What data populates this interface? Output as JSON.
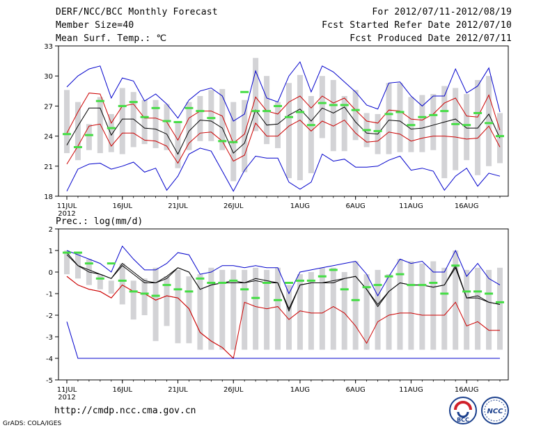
{
  "header": {
    "title": "DERF/NCC/BCC Monthly Forecast",
    "member_size": "Member Size=40",
    "variable1": "Mean Surf. Temp.: ℃",
    "forecast_period": "For 2012/07/11-2012/08/19",
    "fcst_started": "Fcst Started Refer Date 2012/07/10",
    "fcst_produced": "Fcst Produced Date 2012/07/11"
  },
  "footer": {
    "url": "http://cmdp.ncc.cma.gov.cn",
    "credit": "GrADS: COLA/IGES",
    "logo_bcc": "BCC",
    "logo_ncc": "NCC"
  },
  "chart_data": [
    {
      "type": "line",
      "title": "Mean Surf. Temp.: ℃",
      "ylim": [
        18,
        33
      ],
      "yticks": [
        18,
        21,
        24,
        27,
        30,
        33
      ],
      "xlim": [
        0,
        39
      ],
      "xticks": [
        {
          "day": 0,
          "label": "11JUL"
        },
        {
          "day": 5,
          "label": "16JUL"
        },
        {
          "day": 10,
          "label": "21JUL"
        },
        {
          "day": 15,
          "label": "26JUL"
        },
        {
          "day": 21,
          "label": "1AUG"
        },
        {
          "day": 26,
          "label": "6AUG"
        },
        {
          "day": 31,
          "label": "11AUG"
        },
        {
          "day": 36,
          "label": "16AUG"
        }
      ],
      "year_label": "2012",
      "series": [
        {
          "name": "max",
          "color": "#0000cc",
          "values": [
            28.9,
            30.0,
            30.7,
            31.0,
            27.8,
            29.8,
            29.5,
            27.5,
            28.2,
            27.2,
            25.8,
            27.6,
            28.5,
            28.8,
            28.0,
            25.5,
            26.2,
            30.5,
            27.8,
            27.4,
            30.0,
            31.4,
            28.4,
            31.0,
            30.4,
            29.4,
            28.4,
            27.1,
            26.7,
            29.3,
            29.4,
            28.0,
            27.0,
            28.0,
            28.0,
            30.7,
            28.3,
            29.0,
            30.8,
            26.4
          ]
        },
        {
          "name": "upper",
          "color": "#cc0000",
          "values": [
            24.3,
            26.4,
            28.3,
            28.2,
            25.3,
            27.0,
            27.2,
            25.8,
            25.8,
            25.4,
            23.6,
            25.8,
            26.5,
            26.5,
            26.0,
            23.3,
            24.2,
            27.9,
            26.5,
            26.2,
            27.4,
            28.0,
            26.8,
            28.0,
            27.3,
            27.8,
            26.6,
            25.5,
            25.3,
            26.6,
            26.5,
            25.7,
            25.6,
            26.2,
            27.3,
            27.8,
            26.0,
            25.9,
            28.1,
            24.6
          ]
        },
        {
          "name": "mean",
          "color": "#000000",
          "values": [
            23.1,
            25.0,
            26.8,
            26.8,
            24.1,
            25.7,
            25.7,
            24.8,
            24.7,
            24.2,
            22.2,
            24.5,
            25.6,
            25.5,
            24.8,
            22.3,
            23.3,
            26.6,
            25.1,
            25.2,
            26.1,
            26.7,
            25.5,
            26.8,
            26.3,
            26.9,
            25.4,
            24.3,
            24.2,
            25.6,
            25.5,
            24.7,
            24.8,
            25.1,
            25.4,
            25.7,
            24.8,
            24.8,
            26.2,
            23.8
          ]
        },
        {
          "name": "lower",
          "color": "#cc0000",
          "values": [
            21.2,
            23.0,
            25.0,
            25.2,
            23.0,
            24.3,
            24.3,
            23.6,
            23.5,
            23.0,
            21.3,
            23.3,
            24.3,
            24.4,
            23.5,
            21.5,
            22.1,
            25.3,
            24.0,
            24.0,
            25.0,
            25.6,
            24.5,
            25.5,
            25.0,
            25.6,
            24.3,
            23.4,
            23.5,
            24.4,
            24.2,
            23.5,
            23.8,
            24.0,
            24.0,
            23.9,
            23.7,
            23.8,
            25.0,
            22.9
          ]
        },
        {
          "name": "min",
          "color": "#0000cc",
          "values": [
            18.5,
            20.7,
            21.2,
            21.3,
            20.7,
            21.0,
            21.4,
            20.4,
            20.8,
            18.6,
            20.0,
            22.2,
            22.8,
            22.5,
            20.5,
            18.5,
            20.6,
            22.0,
            21.8,
            21.8,
            19.4,
            18.7,
            19.4,
            22.2,
            21.5,
            21.7,
            20.9,
            20.9,
            21.0,
            21.6,
            22.0,
            20.6,
            20.8,
            20.5,
            18.6,
            20.0,
            20.8,
            19.0,
            20.3,
            20.0
          ]
        }
      ],
      "box_low": [
        22.3,
        21.6,
        22.6,
        22.3,
        22.4,
        22.2,
        22.9,
        23.2,
        22.8,
        22.6,
        20.8,
        22.6,
        23.5,
        23.5,
        22.6,
        19.5,
        20.4,
        24.5,
        23.2,
        22.8,
        19.8,
        19.6,
        20.3,
        23.8,
        22.5,
        22.5,
        23.6,
        22.9,
        22.2,
        22.2,
        22.4,
        22.4,
        22.4,
        22.6,
        19.8,
        20.6,
        21.6,
        20.1,
        21.0,
        21.3
      ],
      "box_high": [
        28.6,
        27.4,
        25.2,
        27.9,
        26.2,
        28.8,
        28.4,
        27.6,
        27.6,
        27.2,
        25.5,
        27.4,
        28.0,
        28.6,
        28.7,
        27.4,
        27.6,
        31.8,
        30.0,
        27.4,
        29.3,
        30.1,
        28.0,
        30.0,
        29.6,
        28.0,
        28.6,
        26.3,
        26.2,
        29.3,
        29.3,
        27.9,
        28.1,
        28.2,
        29.0,
        28.8,
        28.2,
        29.6,
        30.0,
        26.3
      ],
      "ensemble_mean": [
        24.2,
        22.9,
        24.1,
        27.5,
        24.8,
        27.0,
        27.4,
        25.9,
        26.8,
        25.5,
        25.4,
        26.8,
        26.5,
        25.8,
        23.5,
        23.4,
        28.4,
        26.5,
        26.5,
        27.0,
        25.9,
        26.4,
        25.1,
        27.3,
        27.1,
        27.1,
        26.6,
        24.6,
        24.5,
        26.2,
        26.4,
        25.1,
        25.9,
        26.1,
        26.5,
        25.2,
        25.1,
        26.3,
        25.3,
        24.0
      ]
    },
    {
      "type": "line",
      "title": "Prec.: log(mm/d)",
      "ylim": [
        -5,
        2
      ],
      "yticks": [
        -5,
        -4,
        -3,
        -2,
        -1,
        0,
        1,
        2
      ],
      "xlim": [
        0,
        39
      ],
      "xticks": [
        {
          "day": 0,
          "label": "11JUL"
        },
        {
          "day": 5,
          "label": "16JUL"
        },
        {
          "day": 10,
          "label": "21JUL"
        },
        {
          "day": 15,
          "label": "26JUL"
        },
        {
          "day": 21,
          "label": "1AUG"
        },
        {
          "day": 26,
          "label": "6AUG"
        },
        {
          "day": 31,
          "label": "11AUG"
        },
        {
          "day": 36,
          "label": "16AUG"
        }
      ],
      "year_label": "2012",
      "series": [
        {
          "name": "max",
          "color": "#0000cc",
          "values": [
            1.0,
            0.8,
            0.6,
            0.4,
            0.0,
            1.2,
            0.6,
            0.1,
            0.1,
            0.4,
            0.9,
            0.8,
            -0.1,
            0.0,
            0.3,
            0.3,
            0.2,
            0.3,
            0.2,
            0.2,
            -1.0,
            0.0,
            0.1,
            0.2,
            0.3,
            0.4,
            0.5,
            -0.1,
            -1.1,
            -0.2,
            0.6,
            0.4,
            0.5,
            0.0,
            0.0,
            1.0,
            -0.2,
            0.4,
            -0.3,
            -0.6
          ]
        },
        {
          "name": "upper",
          "color": "#000000",
          "values": [
            0.9,
            0.3,
            0.1,
            -0.1,
            -0.3,
            0.4,
            0.0,
            -0.4,
            -0.5,
            -0.2,
            0.2,
            0.0,
            -0.8,
            -0.6,
            -0.5,
            -0.4,
            -0.5,
            -0.3,
            -0.4,
            -0.5,
            -1.8,
            -0.6,
            -0.5,
            -0.5,
            -0.4,
            -0.3,
            -0.2,
            -0.8,
            -1.5,
            -0.9,
            -0.5,
            -0.6,
            -0.6,
            -0.7,
            -0.6,
            0.3,
            -1.2,
            -1.1,
            -1.4,
            -1.5
          ]
        },
        {
          "name": "mean",
          "color": "#000000",
          "values": [
            0.8,
            0.3,
            0.0,
            -0.1,
            -0.3,
            0.3,
            -0.1,
            -0.5,
            -0.5,
            -0.3,
            0.2,
            0.0,
            -0.8,
            -0.6,
            -0.5,
            -0.5,
            -0.5,
            -0.4,
            -0.5,
            -0.5,
            -1.7,
            -0.6,
            -0.5,
            -0.5,
            -0.5,
            -0.3,
            -0.2,
            -0.8,
            -1.6,
            -0.9,
            -0.5,
            -0.6,
            -0.6,
            -0.7,
            -0.6,
            0.2,
            -1.2,
            -1.2,
            -1.4,
            -1.5
          ]
        },
        {
          "name": "lower",
          "color": "#cc0000",
          "values": [
            -0.2,
            -0.6,
            -0.8,
            -0.9,
            -1.2,
            -0.6,
            -0.9,
            -1.0,
            -1.3,
            -1.1,
            -1.2,
            -1.7,
            -2.8,
            -3.2,
            -3.5,
            -4.0,
            -4.0,
            -4.0,
            -4.0,
            -4.0,
            -4.0,
            -4.0,
            -4.0,
            -4.0,
            -4.0,
            -4.0,
            -4.0,
            -4.0,
            -4.0,
            -4.0,
            -4.0,
            -4.0,
            -4.0,
            -4.0,
            -4.0,
            -4.0,
            -4.0,
            -4.0,
            -4.0,
            -4.0
          ]
        },
        {
          "name": "lower_outline",
          "color": "#cc0000",
          "values": [
            -0.2,
            -0.6,
            -0.8,
            -0.9,
            -1.2,
            -0.6,
            -0.9,
            -1.0,
            -1.3,
            -1.1,
            -1.2,
            -1.7,
            -2.8,
            -3.2,
            -3.5,
            -4.0,
            -1.4,
            -1.6,
            -1.7,
            -1.6,
            -2.2,
            -1.8,
            -1.9,
            -1.9,
            -1.6,
            -1.9,
            -2.5,
            -3.3,
            -2.3,
            -2.0,
            -1.9,
            -1.9,
            -2.0,
            -2.0,
            -2.0,
            -1.4,
            -2.5,
            -2.3,
            -2.7,
            -2.7
          ]
        },
        {
          "name": "min",
          "color": "#0000cc",
          "values": [
            -2.3,
            -4.0,
            -4.0,
            -4.0,
            -4.0,
            -4.0,
            -4.0,
            -4.0,
            -4.0,
            -4.0,
            -4.0,
            -4.0,
            -4.0,
            -4.0,
            -4.0,
            -4.0,
            -4.0,
            -4.0,
            -4.0,
            -4.0,
            -4.0,
            -4.0,
            -4.0,
            -4.0,
            -4.0,
            -4.0,
            -4.0,
            -4.0,
            -4.0,
            -4.0,
            -4.0,
            -4.0,
            -4.0,
            -4.0,
            -4.0,
            -4.0,
            -4.0,
            -4.0,
            -4.0,
            -4.0
          ]
        }
      ],
      "box_low": [
        -0.1,
        -0.3,
        -0.6,
        -0.8,
        -1.0,
        -1.5,
        -2.2,
        -2.0,
        -3.2,
        -2.5,
        -3.3,
        -3.3,
        -3.6,
        -3.6,
        -3.6,
        -3.6,
        -3.6,
        -3.6,
        -3.6,
        -3.6,
        -3.6,
        -3.6,
        -3.6,
        -3.6,
        -3.6,
        -3.6,
        -3.6,
        -3.6,
        -3.6,
        -3.6,
        -3.6,
        -3.6,
        -3.6,
        -3.6,
        -3.6,
        -3.6,
        -3.6,
        -3.6,
        -3.6,
        -3.6
      ],
      "box_high": [
        1.0,
        0.9,
        0.6,
        -0.1,
        -0.4,
        0.4,
        -0.4,
        -0.3,
        0.2,
        -0.2,
        0.1,
        -0.2,
        -0.1,
        0.2,
        0.1,
        0.1,
        0.1,
        0.2,
        0.1,
        0.2,
        -0.6,
        -0.1,
        0.0,
        0.2,
        0.2,
        0.0,
        0.5,
        -0.1,
        0.1,
        -0.1,
        0.6,
        0.5,
        0.4,
        0.5,
        0.2,
        1.0,
        0.1,
        0.2,
        0.1,
        0.2
      ],
      "ensemble_mean": [
        0.9,
        0.9,
        0.4,
        -0.3,
        0.4,
        -0.4,
        -0.9,
        -1.0,
        -1.1,
        -0.6,
        -0.8,
        -0.9,
        -0.3,
        -0.5,
        -0.5,
        -0.4,
        -0.8,
        -1.2,
        -0.5,
        -1.3,
        -0.5,
        -0.4,
        -0.4,
        -0.2,
        0.1,
        -0.8,
        -1.3,
        -0.7,
        -0.6,
        -0.2,
        -0.1,
        -0.6,
        -0.6,
        -0.5,
        -1.0,
        0.3,
        -0.9,
        -0.9,
        -1.0,
        -1.4
      ]
    }
  ]
}
